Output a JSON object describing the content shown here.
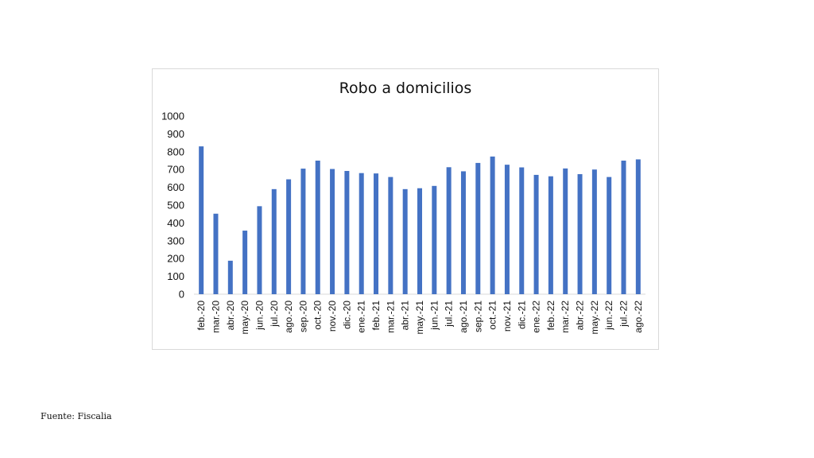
{
  "chart_data": {
    "type": "bar",
    "title": "Robo a domicilios",
    "xlabel": "",
    "ylabel": "",
    "ylim": [
      0,
      1000
    ],
    "yticks": [
      0,
      100,
      200,
      300,
      400,
      500,
      600,
      700,
      800,
      900,
      1000
    ],
    "grid": false,
    "legend": "none",
    "bar_color": "#4472C4",
    "categories": [
      "feb.-20",
      "mar.-20",
      "abr.-20",
      "may.-20",
      "jun.-20",
      "jul.-20",
      "ago.-20",
      "sep.-20",
      "oct.-20",
      "nov.-20",
      "dic.-20",
      "ene.-21",
      "feb.-21",
      "mar.-21",
      "abr.-21",
      "may.-21",
      "jun.-21",
      "jul.-21",
      "ago.-21",
      "sep.-21",
      "oct.-21",
      "nov.-21",
      "dic.-21",
      "ene.-22",
      "feb.-22",
      "mar.-22",
      "abr.-22",
      "may.-22",
      "jun.-22",
      "jul.-22",
      "ago.-22"
    ],
    "values": [
      830,
      452,
      188,
      357,
      494,
      590,
      645,
      705,
      750,
      703,
      692,
      680,
      678,
      658,
      590,
      595,
      608,
      713,
      690,
      737,
      773,
      727,
      712,
      670,
      662,
      706,
      674,
      700,
      658,
      750,
      757
    ]
  },
  "footer": {
    "source": "Fuente: Fiscalia"
  }
}
